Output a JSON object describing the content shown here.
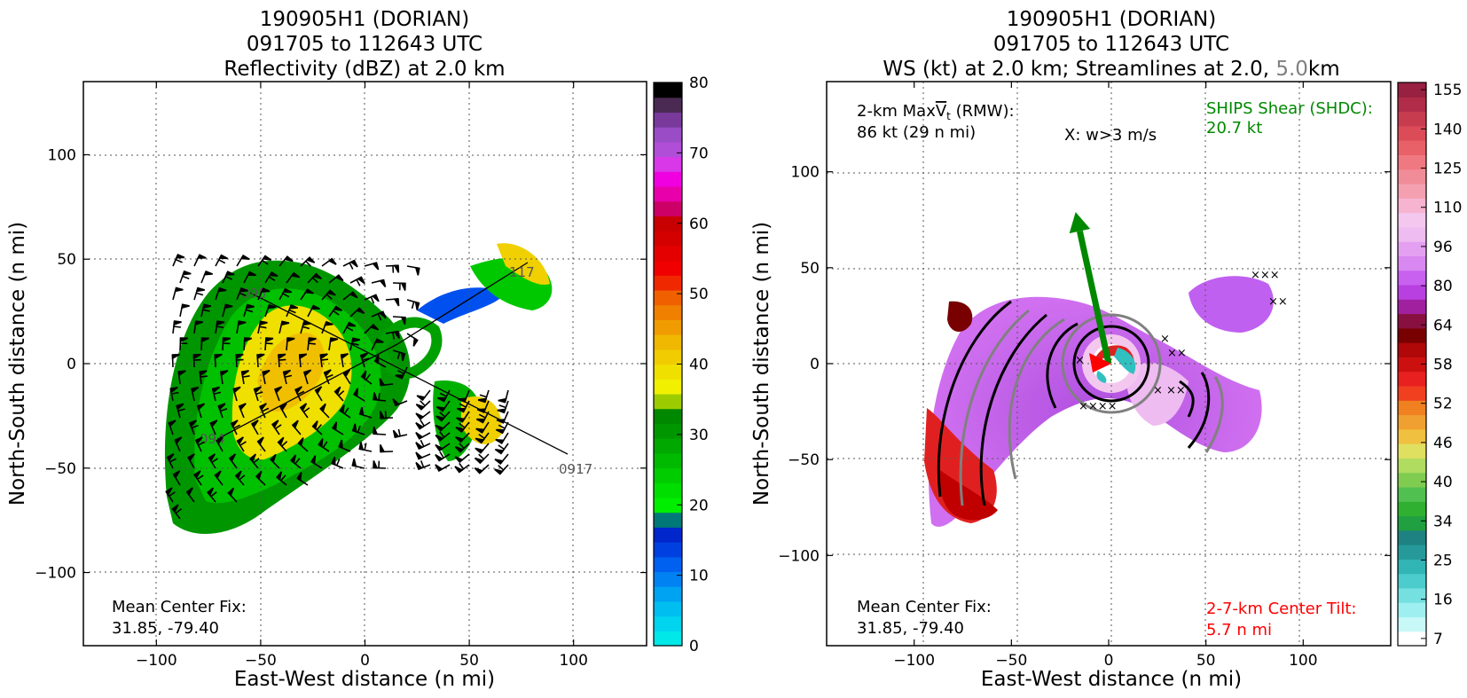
{
  "chart_data": [
    {
      "type": "heatmap",
      "title_lines": [
        "190905H1 (DORIAN)",
        "091705 to 112643 UTC",
        "Reflectivity (dBZ) at 2.0 km"
      ],
      "xlabel": "East-West distance (n mi)",
      "ylabel": "North-South distance (n mi)",
      "xlim": [
        -135,
        135
      ],
      "ylim": [
        -135,
        135
      ],
      "xticks": [
        -100,
        -50,
        0,
        50,
        100
      ],
      "yticks": [
        -100,
        -50,
        0,
        50,
        100
      ],
      "grid": true,
      "colorbar": {
        "min": 0,
        "max": 80,
        "ticks": [
          0,
          10,
          20,
          30,
          40,
          50,
          60,
          70,
          80
        ],
        "colors": [
          "#00e8e8",
          "#00d4ee",
          "#00bef0",
          "#00a2f2",
          "#0082f2",
          "#0060f0",
          "#0040e0",
          "#0026cc",
          "#007878",
          "#00ee00",
          "#00de00",
          "#00cc00",
          "#00ba00",
          "#00a800",
          "#009600",
          "#008800",
          "#9ccc00",
          "#f0f000",
          "#f0e000",
          "#f0cc00",
          "#f0b800",
          "#f09c00",
          "#f08000",
          "#f06000",
          "#f02800",
          "#f00000",
          "#e40000",
          "#d40000",
          "#c80000",
          "#cc0066",
          "#e800aa",
          "#f000e0",
          "#d838e8",
          "#b04ed8",
          "#9a4cc6",
          "#7a3a9c",
          "#4a2a52",
          "#000000"
        ]
      },
      "track_labels": [
        "0917",
        "095",
        "117",
        "094"
      ],
      "annotations": {
        "center_fix_label": "Mean Center Fix:",
        "center_fix_value": "31.85, -79.40"
      }
    },
    {
      "type": "heatmap",
      "title_lines": [
        "190905H1 (DORIAN)",
        "091705 to 112643 UTC"
      ],
      "title_line3": {
        "prefix": "WS (kt) at 2.0 km; Streamlines at 2.0, ",
        "gray": "5.0",
        "suffix": "km"
      },
      "xlabel": "East-West distance (n mi)",
      "ylabel": "North-South distance (n mi)",
      "xlim": [
        -145,
        145
      ],
      "ylim": [
        -147,
        147
      ],
      "xticks": [
        -100,
        -50,
        0,
        50,
        100
      ],
      "yticks": [
        -100,
        -50,
        0,
        50,
        100
      ],
      "grid": true,
      "colorbar": {
        "ticks": [
          "7",
          "16",
          "25",
          "34",
          "40",
          "46",
          "52",
          "58",
          "64",
          "80",
          "96",
          "110",
          "125",
          "140",
          "155"
        ],
        "colors": [
          "#ffffff",
          "#c8f8f8",
          "#9ef0f0",
          "#74e0e0",
          "#4ccccc",
          "#30b4b4",
          "#269a9a",
          "#1e8282",
          "#20a040",
          "#30b030",
          "#50c050",
          "#80cc50",
          "#b0dc60",
          "#e0e060",
          "#f0c040",
          "#f0a030",
          "#f08020",
          "#f04020",
          "#e82020",
          "#cc1010",
          "#b00808",
          "#780000",
          "#881040",
          "#a020a0",
          "#b840e0",
          "#c860f0",
          "#d888f0",
          "#e4a0f0",
          "#eebcf0",
          "#f4c8ee",
          "#f6b4d0",
          "#f4a0b0",
          "#f08c98",
          "#f07880",
          "#e86068",
          "#dc4c58",
          "#c83c50",
          "#b02c48",
          "#982040"
        ]
      },
      "annotations": {
        "max_vt_line1": "2-km Max",
        "max_vt_symbol": "V",
        "max_vt_sub": "t",
        "max_vt_suffix": " (RMW):",
        "max_vt_value": "86 kt (29 n mi)",
        "updraft_marker": "X: w>3 m/s",
        "shear_label": "SHIPS Shear (SHDC):",
        "shear_value": "20.7 kt",
        "center_fix_label": "Mean Center Fix:",
        "center_fix_value": "31.85, -79.40",
        "tilt_label": "2-7-km Center Tilt:",
        "tilt_value": "5.7 n mi"
      },
      "shear_vector": {
        "dx": -17,
        "dy": 79
      },
      "colors": {
        "shear": "#008800",
        "tilt": "#ff0000",
        "streamline_2km": "#000000",
        "streamline_5km": "#808080"
      }
    }
  ]
}
